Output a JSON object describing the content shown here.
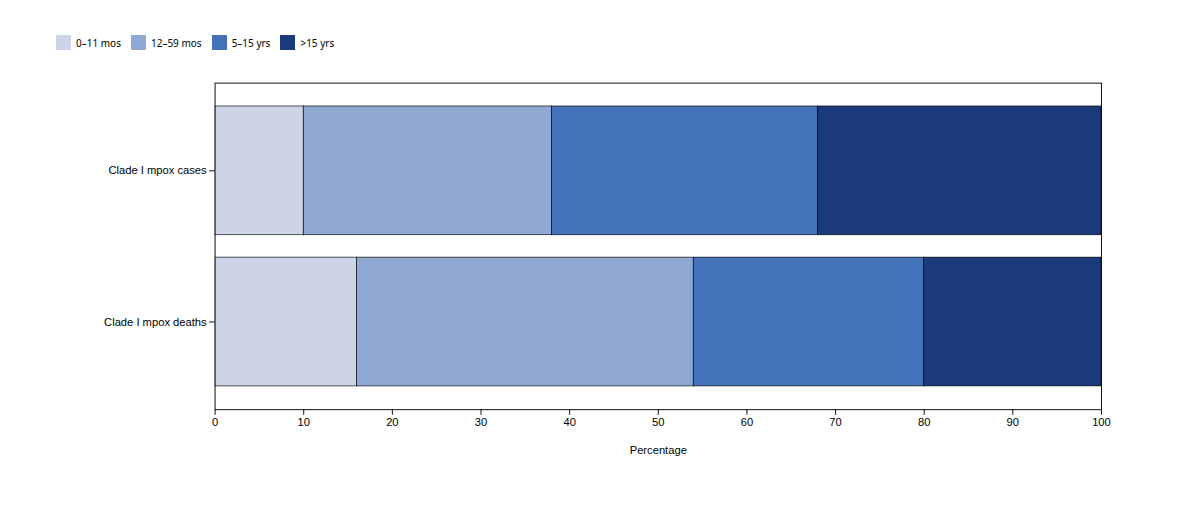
{
  "chart_data": {
    "type": "bar",
    "orientation": "horizontal",
    "stacked": true,
    "categories": [
      "Clade I mpox cases",
      "Clade I mpox deaths"
    ],
    "series": [
      {
        "name": "0–11 mos",
        "color": "#cdd4e8",
        "values": [
          10,
          16
        ]
      },
      {
        "name": "12–59 mos",
        "color": "#8fa8d4",
        "values": [
          28,
          38
        ]
      },
      {
        "name": "5–15 yrs",
        "color": "#4472b8",
        "values": [
          30,
          26
        ]
      },
      {
        "name": ">15 yrs",
        "color": "#1a3a7c",
        "values": [
          32,
          20
        ]
      }
    ],
    "xlabel": "Percentage",
    "xlim": [
      0,
      100
    ],
    "xticks": [
      0,
      10,
      20,
      30,
      40,
      50,
      60,
      70,
      80,
      90,
      100
    ],
    "legend": "top",
    "grid": false
  }
}
